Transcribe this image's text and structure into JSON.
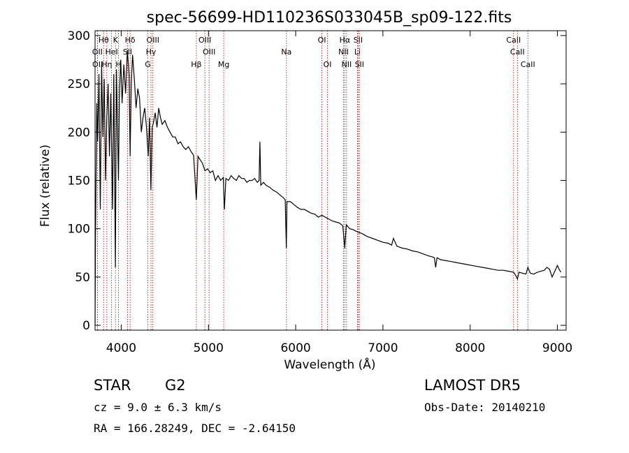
{
  "chart_data": {
    "type": "line",
    "title": "spec-56699-HD110236S033045B_sp09-122.fits",
    "xlabel": "Wavelength (Å)",
    "ylabel": "Flux (relative)",
    "xlim": [
      3700,
      9100
    ],
    "ylim": [
      -5,
      305
    ],
    "xticks": [
      4000,
      5000,
      6000,
      7000,
      8000,
      9000
    ],
    "yticks": [
      0,
      50,
      100,
      150,
      200,
      250,
      300
    ],
    "grid": false,
    "line_color": "#000000",
    "marker_color": "#b22222",
    "series": [
      {
        "x": [
          3700,
          3705,
          3712,
          3720,
          3730,
          3745,
          3760,
          3775,
          3790,
          3805,
          3820,
          3835,
          3850,
          3865,
          3880,
          3890,
          3900,
          3915,
          3933,
          3945,
          3960,
          3968,
          3980,
          3995,
          4010,
          4030,
          4050,
          4070,
          4090,
          4102,
          4115,
          4130,
          4150,
          4170,
          4190,
          4210,
          4230,
          4250,
          4270,
          4290,
          4310,
          4325,
          4340,
          4355,
          4370,
          4390,
          4410,
          4430,
          4450,
          4470,
          4500,
          4530,
          4560,
          4590,
          4620,
          4650,
          4680,
          4710,
          4740,
          4770,
          4800,
          4830,
          4861,
          4880,
          4900,
          4930,
          4960,
          4990,
          5020,
          5050,
          5080,
          5110,
          5140,
          5170,
          5183,
          5200,
          5230,
          5260,
          5290,
          5320,
          5350,
          5380,
          5410,
          5440,
          5470,
          5500,
          5530,
          5560,
          5580,
          5590,
          5600,
          5630,
          5660,
          5700,
          5740,
          5780,
          5820,
          5860,
          5880,
          5893,
          5900,
          5940,
          5980,
          6020,
          6060,
          6100,
          6140,
          6180,
          6220,
          6260,
          6300,
          6340,
          6380,
          6420,
          6460,
          6500,
          6540,
          6563,
          6580,
          6620,
          6660,
          6700,
          6760,
          6820,
          6880,
          6940,
          7000,
          7060,
          7100,
          7120,
          7160,
          7220,
          7280,
          7340,
          7400,
          7460,
          7520,
          7560,
          7590,
          7605,
          7620,
          7660,
          7720,
          7780,
          7840,
          7900,
          7960,
          8020,
          8080,
          8140,
          8200,
          8260,
          8320,
          8380,
          8440,
          8498,
          8520,
          8542,
          8560,
          8600,
          8640,
          8662,
          8690,
          8730,
          8770,
          8810,
          8850,
          8880,
          8910,
          8940,
          8970,
          9000,
          9020,
          9040
        ],
        "y": [
          0,
          90,
          160,
          230,
          190,
          260,
          120,
          270,
          195,
          255,
          150,
          215,
          250,
          175,
          240,
          185,
          120,
          260,
          60,
          265,
          190,
          150,
          240,
          275,
          230,
          270,
          240,
          285,
          260,
          175,
          250,
          280,
          255,
          225,
          245,
          235,
          200,
          215,
          225,
          205,
          175,
          215,
          140,
          205,
          210,
          220,
          205,
          225,
          215,
          208,
          212,
          205,
          200,
          195,
          195,
          188,
          190,
          185,
          182,
          185,
          180,
          176,
          130,
          175,
          172,
          168,
          160,
          162,
          158,
          160,
          150,
          155,
          150,
          153,
          120,
          152,
          150,
          155,
          152,
          150,
          155,
          152,
          152,
          148,
          150,
          150,
          152,
          148,
          150,
          190,
          145,
          148,
          145,
          143,
          140,
          138,
          135,
          132,
          130,
          80,
          128,
          128,
          125,
          122,
          120,
          120,
          118,
          116,
          115,
          112,
          114,
          112,
          110,
          108,
          107,
          106,
          103,
          80,
          104,
          100,
          99,
          97,
          95,
          92,
          90,
          88,
          86,
          85,
          83,
          90,
          82,
          80,
          79,
          77,
          76,
          74,
          72,
          71,
          70,
          60,
          70,
          68,
          67,
          66,
          65,
          64,
          63,
          62,
          61,
          60,
          59,
          58,
          57,
          57,
          56,
          55,
          52,
          48,
          55,
          54,
          53,
          60,
          54,
          53,
          55,
          56,
          57,
          60,
          58,
          50,
          56,
          62,
          58,
          55
        ]
      }
    ],
    "line_markers": [
      {
        "label": "Hθ",
        "x": 3798,
        "row": 0
      },
      {
        "label": "OII",
        "x": 3727,
        "row": 1
      },
      {
        "label": "OII",
        "x": 3729,
        "row": 2
      },
      {
        "label": "Hη",
        "x": 3835,
        "row": 2
      },
      {
        "label": "K",
        "x": 3934,
        "row": 0
      },
      {
        "label": "HeI",
        "x": 3889,
        "row": 1
      },
      {
        "label": "H",
        "x": 3969,
        "row": 2
      },
      {
        "label": "Hδ",
        "x": 4102,
        "row": 0
      },
      {
        "label": "SII",
        "x": 4072,
        "row": 1
      },
      {
        "label": "OIII",
        "x": 4363,
        "row": 0
      },
      {
        "label": "Hγ",
        "x": 4341,
        "row": 1
      },
      {
        "label": "G",
        "x": 4305,
        "row": 2
      },
      {
        "label": "Hβ",
        "x": 4861,
        "row": 2
      },
      {
        "label": "OIII",
        "x": 4959,
        "row": 0
      },
      {
        "label": "OIII",
        "x": 5007,
        "row": 1
      },
      {
        "label": "Mg",
        "x": 5175,
        "row": 2
      },
      {
        "label": "Na",
        "x": 5894,
        "row": 1
      },
      {
        "label": "OI",
        "x": 6300,
        "row": 0
      },
      {
        "label": "OI",
        "x": 6364,
        "row": 2
      },
      {
        "label": "Hα",
        "x": 6563,
        "row": 0
      },
      {
        "label": "NII",
        "x": 6548,
        "row": 1
      },
      {
        "label": "NII",
        "x": 6583,
        "row": 2
      },
      {
        "label": "SII",
        "x": 6716,
        "row": 0
      },
      {
        "label": "Li",
        "x": 6708,
        "row": 1
      },
      {
        "label": "SII",
        "x": 6731,
        "row": 2
      },
      {
        "label": "CaII",
        "x": 8498,
        "row": 0
      },
      {
        "label": "CaII",
        "x": 8542,
        "row": 1
      },
      {
        "label": "CaII",
        "x": 8662,
        "row": 2
      }
    ]
  },
  "info": {
    "object_type": "STAR",
    "subclass": "G2",
    "survey": "LAMOST DR5",
    "cz": "cz = 9.0 ± 6.3 km/s",
    "obs_date": "Obs-Date: 20140210",
    "radec": "RA = 166.28249, DEC =  -2.64150"
  }
}
